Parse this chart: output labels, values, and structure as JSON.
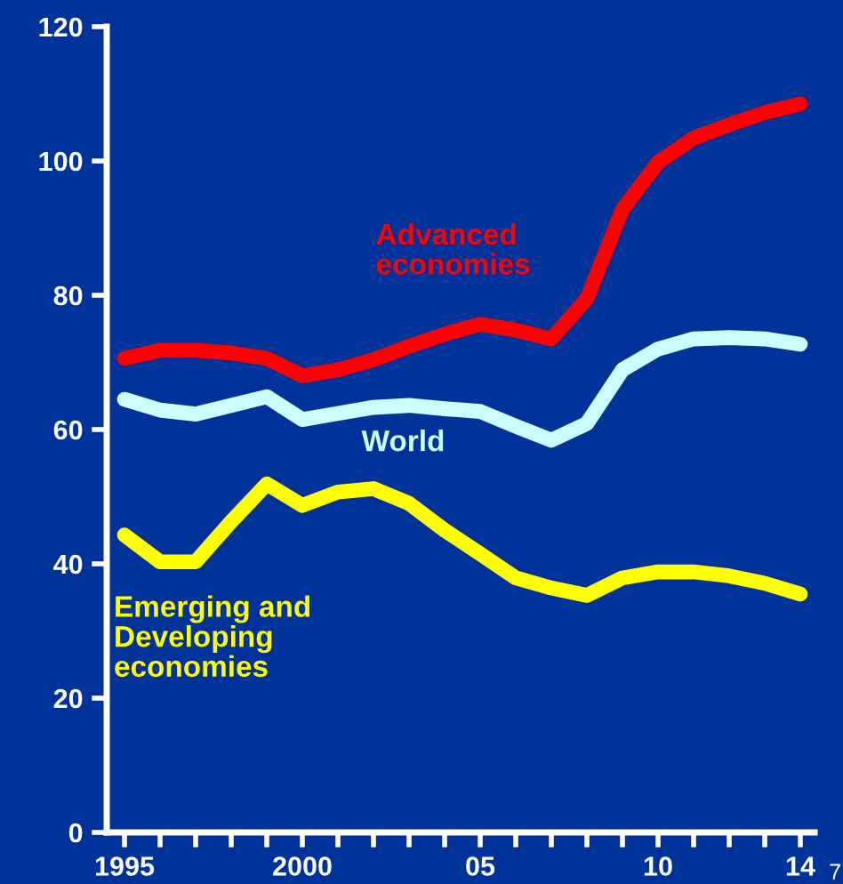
{
  "chart_data": {
    "type": "line",
    "x": [
      1995,
      1996,
      1997,
      1998,
      1999,
      2000,
      2001,
      2002,
      2003,
      2004,
      2005,
      2006,
      2007,
      2008,
      2009,
      2010,
      2011,
      2012,
      2013,
      2014
    ],
    "series": [
      {
        "name": "Advanced\neconomies",
        "color": "#ff0000",
        "values": [
          70.6,
          71.8,
          71.8,
          71.4,
          70.6,
          68.0,
          68.9,
          70.4,
          72.4,
          74.2,
          75.7,
          74.8,
          73.5,
          79.5,
          92.8,
          99.8,
          103.4,
          105.4,
          107.2,
          108.5
        ]
      },
      {
        "name": "World",
        "color": "#ccffff",
        "values": [
          64.5,
          62.9,
          62.3,
          63.6,
          64.9,
          61.5,
          62.4,
          63.3,
          63.6,
          63.1,
          62.7,
          60.5,
          58.4,
          60.9,
          68.9,
          72.0,
          73.5,
          73.7,
          73.5,
          72.7
        ]
      },
      {
        "name": "Emerging and\nDeveloping\neconomies",
        "color": "#ffff00",
        "values": [
          44.3,
          40.3,
          40.3,
          46.3,
          51.9,
          48.7,
          50.7,
          51.2,
          49.0,
          45.0,
          41.5,
          37.9,
          36.4,
          35.3,
          37.9,
          38.8,
          38.8,
          38.2,
          37.1,
          35.5
        ]
      }
    ],
    "xlim": [
      1994.5,
      2014.4
    ],
    "xticks": [
      1995,
      {
        "value": 1996,
        "label": null
      },
      {
        "value": 1997,
        "label": null
      },
      {
        "value": 1998,
        "label": null
      },
      {
        "value": 1999,
        "label": null
      },
      {
        "value": 2000,
        "label": "2000"
      },
      {
        "value": 2001,
        "label": null
      },
      {
        "value": 2002,
        "label": null
      },
      {
        "value": 2003,
        "label": null
      },
      {
        "value": 2004,
        "label": null
      },
      {
        "value": 2005,
        "label": "05"
      },
      {
        "value": 2006,
        "label": null
      },
      {
        "value": 2007,
        "label": null
      },
      {
        "value": 2008,
        "label": null
      },
      {
        "value": 2009,
        "label": null
      },
      {
        "value": 2010,
        "label": "10"
      },
      {
        "value": 2011,
        "label": null
      },
      {
        "value": 2012,
        "label": null
      },
      {
        "value": 2013,
        "label": null
      },
      {
        "value": 2014,
        "label": "14"
      }
    ],
    "ylim": [
      0,
      120
    ],
    "yticks": [
      0,
      20,
      40,
      60,
      80,
      100,
      120
    ],
    "grid": false,
    "legend": false,
    "marker": "none",
    "line_style": "solid",
    "annotations": [
      "7"
    ]
  }
}
